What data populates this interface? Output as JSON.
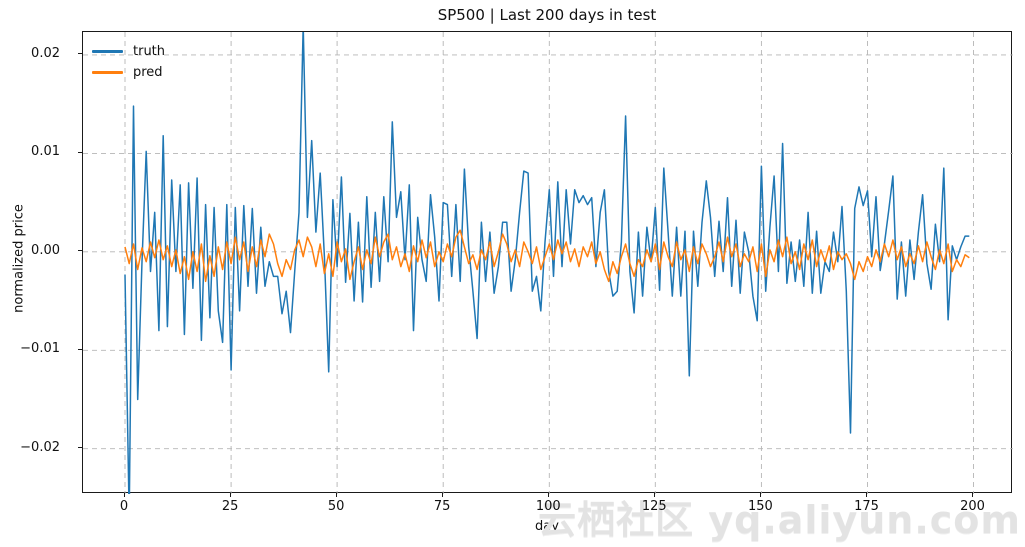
{
  "figure": {
    "background": "#ffffff",
    "text_color": "#111111",
    "spine_color": "#1a1a1a",
    "grid_color": "#b5b5b5"
  },
  "watermark": {
    "text": "云栖社区 yq.aliyun.com",
    "color": "#e3e3e3"
  },
  "chart_data": {
    "type": "line",
    "title": "SP500 | Last 200 days in test",
    "xlabel": "day",
    "ylabel": "normalized price",
    "x_start": 0,
    "x_step": 1,
    "n_points": 200,
    "xlim": [
      -9.9,
      209.3
    ],
    "ylim": [
      -0.0246,
      0.02233
    ],
    "xticks": [
      0,
      25,
      50,
      75,
      100,
      125,
      150,
      175,
      200
    ],
    "yticks": [
      0.02,
      0.01,
      0.0,
      -0.01,
      -0.02
    ],
    "ytick_labels": [
      "0.02",
      "0.01",
      "0.00",
      "−0.01",
      "−0.02"
    ],
    "grid": true,
    "grid_style": "dashed",
    "legend": {
      "position": "upper-left",
      "frame": false,
      "entries": [
        {
          "label": "truth",
          "color": "#1f77b4"
        },
        {
          "label": "pred",
          "color": "#ff7f0e"
        }
      ]
    },
    "series": [
      {
        "name": "truth",
        "color": "#1f77b4",
        "line_width": 1.5,
        "values": [
          -0.0023,
          -0.027,
          0.0148,
          -0.015,
          -0.001,
          0.0102,
          -0.002,
          0.004,
          -0.008,
          0.0118,
          -0.0076,
          0.0073,
          -0.002,
          0.0068,
          -0.0084,
          0.007,
          -0.0037,
          0.0075,
          -0.009,
          0.0048,
          -0.0067,
          0.0045,
          -0.006,
          -0.0092,
          0.0048,
          -0.012,
          0.0045,
          -0.006,
          0.0047,
          -0.0035,
          0.0044,
          -0.0042,
          0.0025,
          -0.0035,
          -0.001,
          -0.0025,
          -0.0025,
          -0.0063,
          -0.004,
          -0.0082,
          -0.002,
          0.004,
          0.023,
          0.0035,
          0.0113,
          0.002,
          0.008,
          -0.0005,
          -0.0122,
          0.0053,
          -0.0015,
          0.0076,
          -0.0031,
          0.0039,
          -0.005,
          0.003,
          -0.0051,
          0.0056,
          -0.0036,
          0.004,
          -0.003,
          0.0056,
          -0.001,
          0.0132,
          0.0035,
          0.0061,
          -0.0008,
          0.0068,
          -0.008,
          0.0035,
          -0.0008,
          -0.003,
          0.0058,
          0.0015,
          -0.005,
          0.005,
          0.0048,
          -0.0025,
          0.0048,
          -0.003,
          0.0084,
          0.0005,
          -0.004,
          -0.0088,
          0.003,
          -0.003,
          0.002,
          -0.0042,
          -0.0015,
          0.003,
          0.003,
          -0.004,
          -0.0008,
          0.004,
          0.0082,
          0.008,
          -0.004,
          -0.0025,
          -0.006,
          0.001,
          0.0063,
          -0.0025,
          0.0071,
          -0.0015,
          0.0063,
          0.0008,
          0.0063,
          0.005,
          0.0057,
          0.0048,
          0.0055,
          -0.0015,
          0.004,
          0.0063,
          -0.002,
          -0.0045,
          -0.004,
          0.001,
          0.0138,
          -0.002,
          -0.0062,
          0.002,
          -0.0045,
          0.0025,
          -0.001,
          0.0045,
          -0.0039,
          0.0085,
          0.002,
          -0.0045,
          0.0025,
          -0.0045,
          0.0021,
          -0.0126,
          0.0021,
          -0.0035,
          0.003,
          0.0072,
          0.0035,
          -0.0025,
          0.0031,
          -0.002,
          0.0055,
          -0.0035,
          0.0032,
          -0.0042,
          0.002,
          0.0,
          -0.0045,
          -0.007,
          0.0087,
          -0.004,
          0.0025,
          0.0077,
          -0.002,
          0.011,
          -0.0032,
          0.001,
          -0.003,
          0.0012,
          -0.0035,
          0.004,
          -0.0042,
          0.0021,
          -0.0042,
          -0.001,
          -0.002,
          0.002,
          -0.001,
          0.0046,
          -0.004,
          -0.0184,
          0.0044,
          0.0066,
          0.0047,
          0.0062,
          -0.0005,
          0.0056,
          -0.0019,
          0.0008,
          0.0042,
          0.0077,
          -0.0048,
          0.001,
          -0.0045,
          0.0012,
          -0.0028,
          0.002,
          0.0058,
          -0.0012,
          -0.0038,
          0.0028,
          -0.001,
          0.0085,
          -0.0069,
          0.0006,
          -0.0008,
          0.0005,
          0.0016,
          0.0016
        ]
      },
      {
        "name": "pred",
        "color": "#ff7f0e",
        "line_width": 1.5,
        "values": [
          0.0005,
          -0.0012,
          0.0008,
          -0.0018,
          0.0004,
          -0.001,
          0.001,
          -0.0006,
          0.0012,
          -0.0008,
          0.0006,
          -0.0015,
          0.0002,
          -0.0022,
          -0.0005,
          -0.0028,
          0.0,
          -0.002,
          0.0008,
          -0.003,
          -0.0004,
          -0.0025,
          0.0005,
          -0.0018,
          0.001,
          -0.0012,
          0.0015,
          -0.0008,
          0.001,
          -0.002,
          0.0005,
          -0.0015,
          0.0012,
          -0.0005,
          0.0018,
          0.0008,
          -0.0012,
          -0.0025,
          -0.0008,
          -0.0018,
          0.0002,
          0.0012,
          -0.0005,
          0.0015,
          0.0005,
          -0.0015,
          0.0008,
          -0.0022,
          -0.0002,
          -0.0025,
          0.001,
          -0.001,
          0.0003,
          -0.0028,
          -0.001,
          0.0005,
          -0.0018,
          0.0002,
          -0.0012,
          0.0015,
          -0.0005,
          0.001,
          0.0018,
          -0.0008,
          0.0005,
          -0.0015,
          -0.0002,
          -0.002,
          0.0006,
          -0.001,
          0.0012,
          -0.0006,
          0.001,
          -0.0015,
          0.0,
          -0.001,
          0.0008,
          -0.0005,
          0.0015,
          0.0022,
          0.0005,
          -0.0012,
          -0.0003,
          -0.0018,
          0.0002,
          -0.0008,
          0.001,
          -0.0015,
          0.0,
          0.0018,
          0.0008,
          -0.001,
          0.0002,
          -0.0015,
          0.001,
          0.0,
          -0.0012,
          0.0005,
          -0.0018,
          -0.0005,
          0.0008,
          -0.0008,
          0.0012,
          -0.0002,
          0.001,
          -0.001,
          0.0003,
          -0.0015,
          0.0005,
          -0.0005,
          0.001,
          -0.0012,
          0.0,
          -0.0018,
          -0.003,
          -0.001,
          -0.0022,
          -0.0005,
          0.0008,
          -0.0012,
          -0.0025,
          -0.0008,
          -0.0015,
          0.0002,
          -0.001,
          0.0008,
          -0.0018,
          0.001,
          -0.0005,
          -0.0015,
          0.001,
          -0.0008,
          0.0002,
          -0.002,
          0.0005,
          -0.0012,
          0.0008,
          -0.0002,
          -0.0015,
          -0.0005,
          0.001,
          -0.001,
          0.0015,
          -0.0005,
          0.0008,
          -0.0015,
          -0.0002,
          -0.001,
          0.0005,
          -0.002,
          0.0008,
          -0.0025,
          0.0002,
          -0.001,
          0.0012,
          -0.0005,
          0.0015,
          -0.0012,
          0.0,
          -0.0018,
          0.0008,
          -0.0008,
          0.0012,
          -0.0015,
          0.0002,
          -0.001,
          0.0006,
          -0.0018,
          0.0,
          -0.0008,
          -0.0002,
          -0.0012,
          -0.0028,
          -0.001,
          -0.002,
          -0.0005,
          -0.0015,
          0.0002,
          -0.001,
          0.0008,
          -0.0005,
          0.0012,
          -0.0008,
          0.0005,
          -0.0015,
          -0.0002,
          -0.0012,
          0.0006,
          -0.001,
          0.001,
          -0.0005,
          -0.0018,
          0.0002,
          -0.0012,
          0.0008,
          -0.002,
          -0.0008,
          -0.0015,
          -0.0003,
          -0.0006
        ]
      }
    ]
  }
}
